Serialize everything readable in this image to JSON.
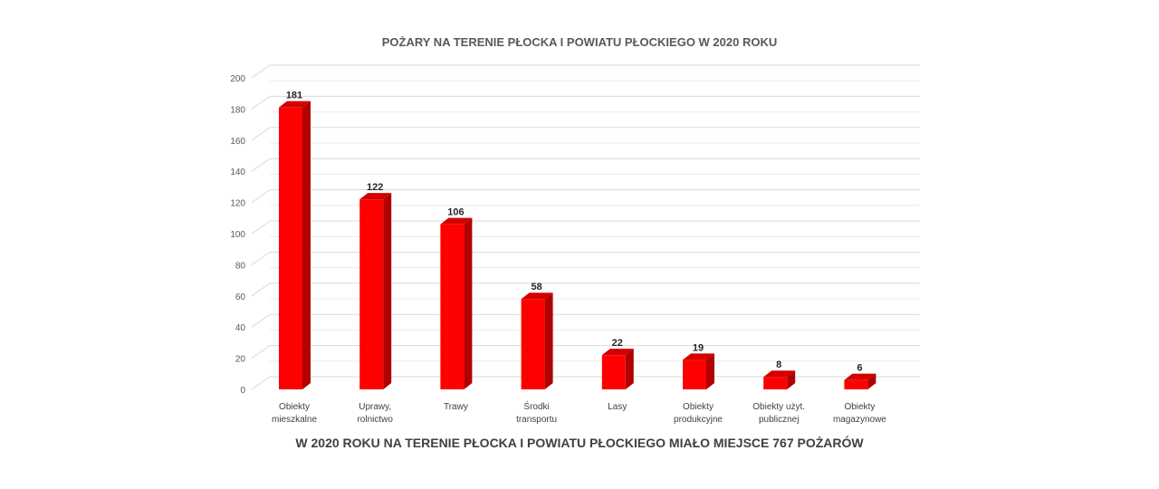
{
  "chart_data": {
    "type": "bar",
    "title": "POŻARY NA TERENIE PŁOCKA I POWIATU PŁOCKIEGO W 2020 ROKU",
    "footer": "W 2020 ROKU NA TERENIE PŁOCKA I POWIATU PŁOCKIEGO MIAŁO MIEJSCE 767 POŻARÓW",
    "categories": [
      [
        "Obiekty",
        "mieszkalne"
      ],
      [
        "Uprawy,",
        "rolnictwo"
      ],
      [
        "Trawy"
      ],
      [
        "Środki",
        "transportu"
      ],
      [
        "Lasy"
      ],
      [
        "Obiekty",
        "produkcyjne"
      ],
      [
        "Obiekty użyt.",
        "publicznej"
      ],
      [
        "Obiekty",
        "magazynowe"
      ]
    ],
    "values": [
      181,
      122,
      106,
      58,
      22,
      19,
      8,
      6
    ],
    "ylim": [
      0,
      200
    ],
    "yticks": [
      0,
      20,
      40,
      60,
      80,
      100,
      120,
      140,
      160,
      180,
      200
    ],
    "grid": true,
    "legend": "none",
    "bar_color": "#ff0000",
    "bar_side_color": "#b00000",
    "bar_top_color": "#d40000"
  }
}
